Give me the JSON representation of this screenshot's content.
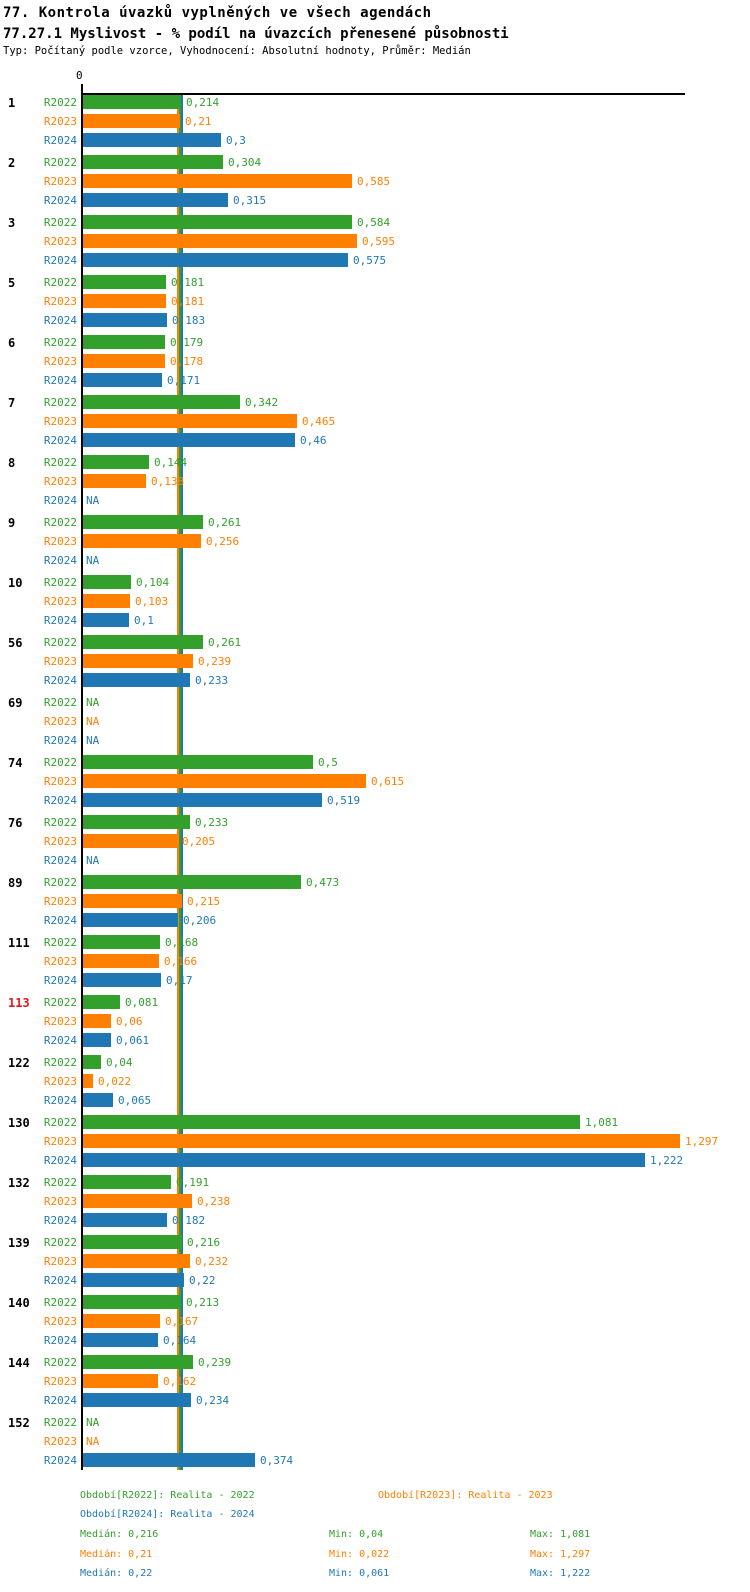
{
  "chart_data": {
    "type": "bar",
    "orientation": "horizontal",
    "title": "77. Kontrola úvazků vyplněných ve všech agendách",
    "subtitle": "77.27.1 Myslivost - % podíl na úvazcích přenesené působnosti",
    "meta": "Typ: Počítaný podle vzorce, Vyhodnocení: Absolutní hodnoty, Průměr: Medián",
    "x_axis": {
      "zero_label": "0",
      "min": 0,
      "max_visible_value": 1.313,
      "gridlines": false
    },
    "value_format": "decimal-comma, NA for missing",
    "categories": [
      "1",
      "2",
      "3",
      "5",
      "6",
      "7",
      "8",
      "9",
      "10",
      "56",
      "69",
      "74",
      "76",
      "89",
      "111",
      "113",
      "122",
      "130",
      "132",
      "139",
      "140",
      "144",
      "152"
    ],
    "highlighted_categories": [
      "113"
    ],
    "highlight_color": "#e31a1c",
    "median_lines_shown": true,
    "series": [
      {
        "name": "R2022",
        "color": "#33a02c",
        "median": 0.216,
        "values": [
          0.214,
          0.304,
          0.584,
          0.181,
          0.179,
          0.342,
          0.144,
          0.261,
          0.104,
          0.261,
          null,
          0.5,
          0.233,
          0.473,
          0.168,
          0.081,
          0.04,
          1.081,
          0.191,
          0.216,
          0.213,
          0.239,
          null
        ],
        "labels": [
          "0,214",
          "0,304",
          "0,584",
          "0,181",
          "0,179",
          "0,342",
          "0,144",
          "0,261",
          "0,104",
          "0,261",
          "NA",
          "0,5",
          "0,233",
          "0,473",
          "0,168",
          "0,081",
          "0,04",
          "1,081",
          "0,191",
          "0,216",
          "0,213",
          "0,239",
          "NA"
        ]
      },
      {
        "name": "R2023",
        "color": "#ff7f00",
        "median": 0.21,
        "values": [
          0.21,
          0.585,
          0.595,
          0.181,
          0.178,
          0.465,
          0.138,
          0.256,
          0.103,
          0.239,
          null,
          0.615,
          0.205,
          0.215,
          0.166,
          0.06,
          0.022,
          1.297,
          0.238,
          0.232,
          0.167,
          0.162,
          null
        ],
        "labels": [
          "0,21",
          "0,585",
          "0,595",
          "0,181",
          "0,178",
          "0,465",
          "0,138",
          "0,256",
          "0,103",
          "0,239",
          "NA",
          "0,615",
          "0,205",
          "0,215",
          "0,166",
          "0,06",
          "0,022",
          "1,297",
          "0,238",
          "0,232",
          "0,167",
          "0,162",
          "NA"
        ]
      },
      {
        "name": "R2024",
        "color": "#1f78b4",
        "median": 0.22,
        "values": [
          0.3,
          0.315,
          0.575,
          0.183,
          0.171,
          0.46,
          null,
          null,
          0.1,
          0.233,
          null,
          0.519,
          null,
          0.206,
          0.17,
          0.061,
          0.065,
          1.222,
          0.182,
          0.22,
          0.164,
          0.234,
          0.374
        ],
        "labels": [
          "0,3",
          "0,315",
          "0,575",
          "0,183",
          "0,171",
          "0,46",
          "NA",
          "NA",
          "0,1",
          "0,233",
          "NA",
          "0,519",
          "NA",
          "0,206",
          "0,17",
          "0,061",
          "0,065",
          "1,222",
          "0,182",
          "0,22",
          "0,164",
          "0,234",
          "0,374"
        ]
      }
    ]
  },
  "legend": {
    "items": [
      {
        "label": "Období[R2022]: Realita - 2022",
        "series": "R2022"
      },
      {
        "label": "Období[R2023]: Realita - 2023",
        "series": "R2023"
      },
      {
        "label": "Období[R2024]: Realita - 2024",
        "series": "R2024"
      }
    ]
  },
  "stats": {
    "rows": [
      {
        "series": "R2022",
        "median": "Medián: 0,216",
        "min": "Min: 0,04",
        "max": "Max: 1,081"
      },
      {
        "series": "R2023",
        "median": "Medián: 0,21",
        "min": "Min: 0,022",
        "max": "Max: 1,297"
      },
      {
        "series": "R2024",
        "median": "Medián: 0,22",
        "min": "Min: 0,061",
        "max": "Max: 1,222"
      }
    ]
  }
}
